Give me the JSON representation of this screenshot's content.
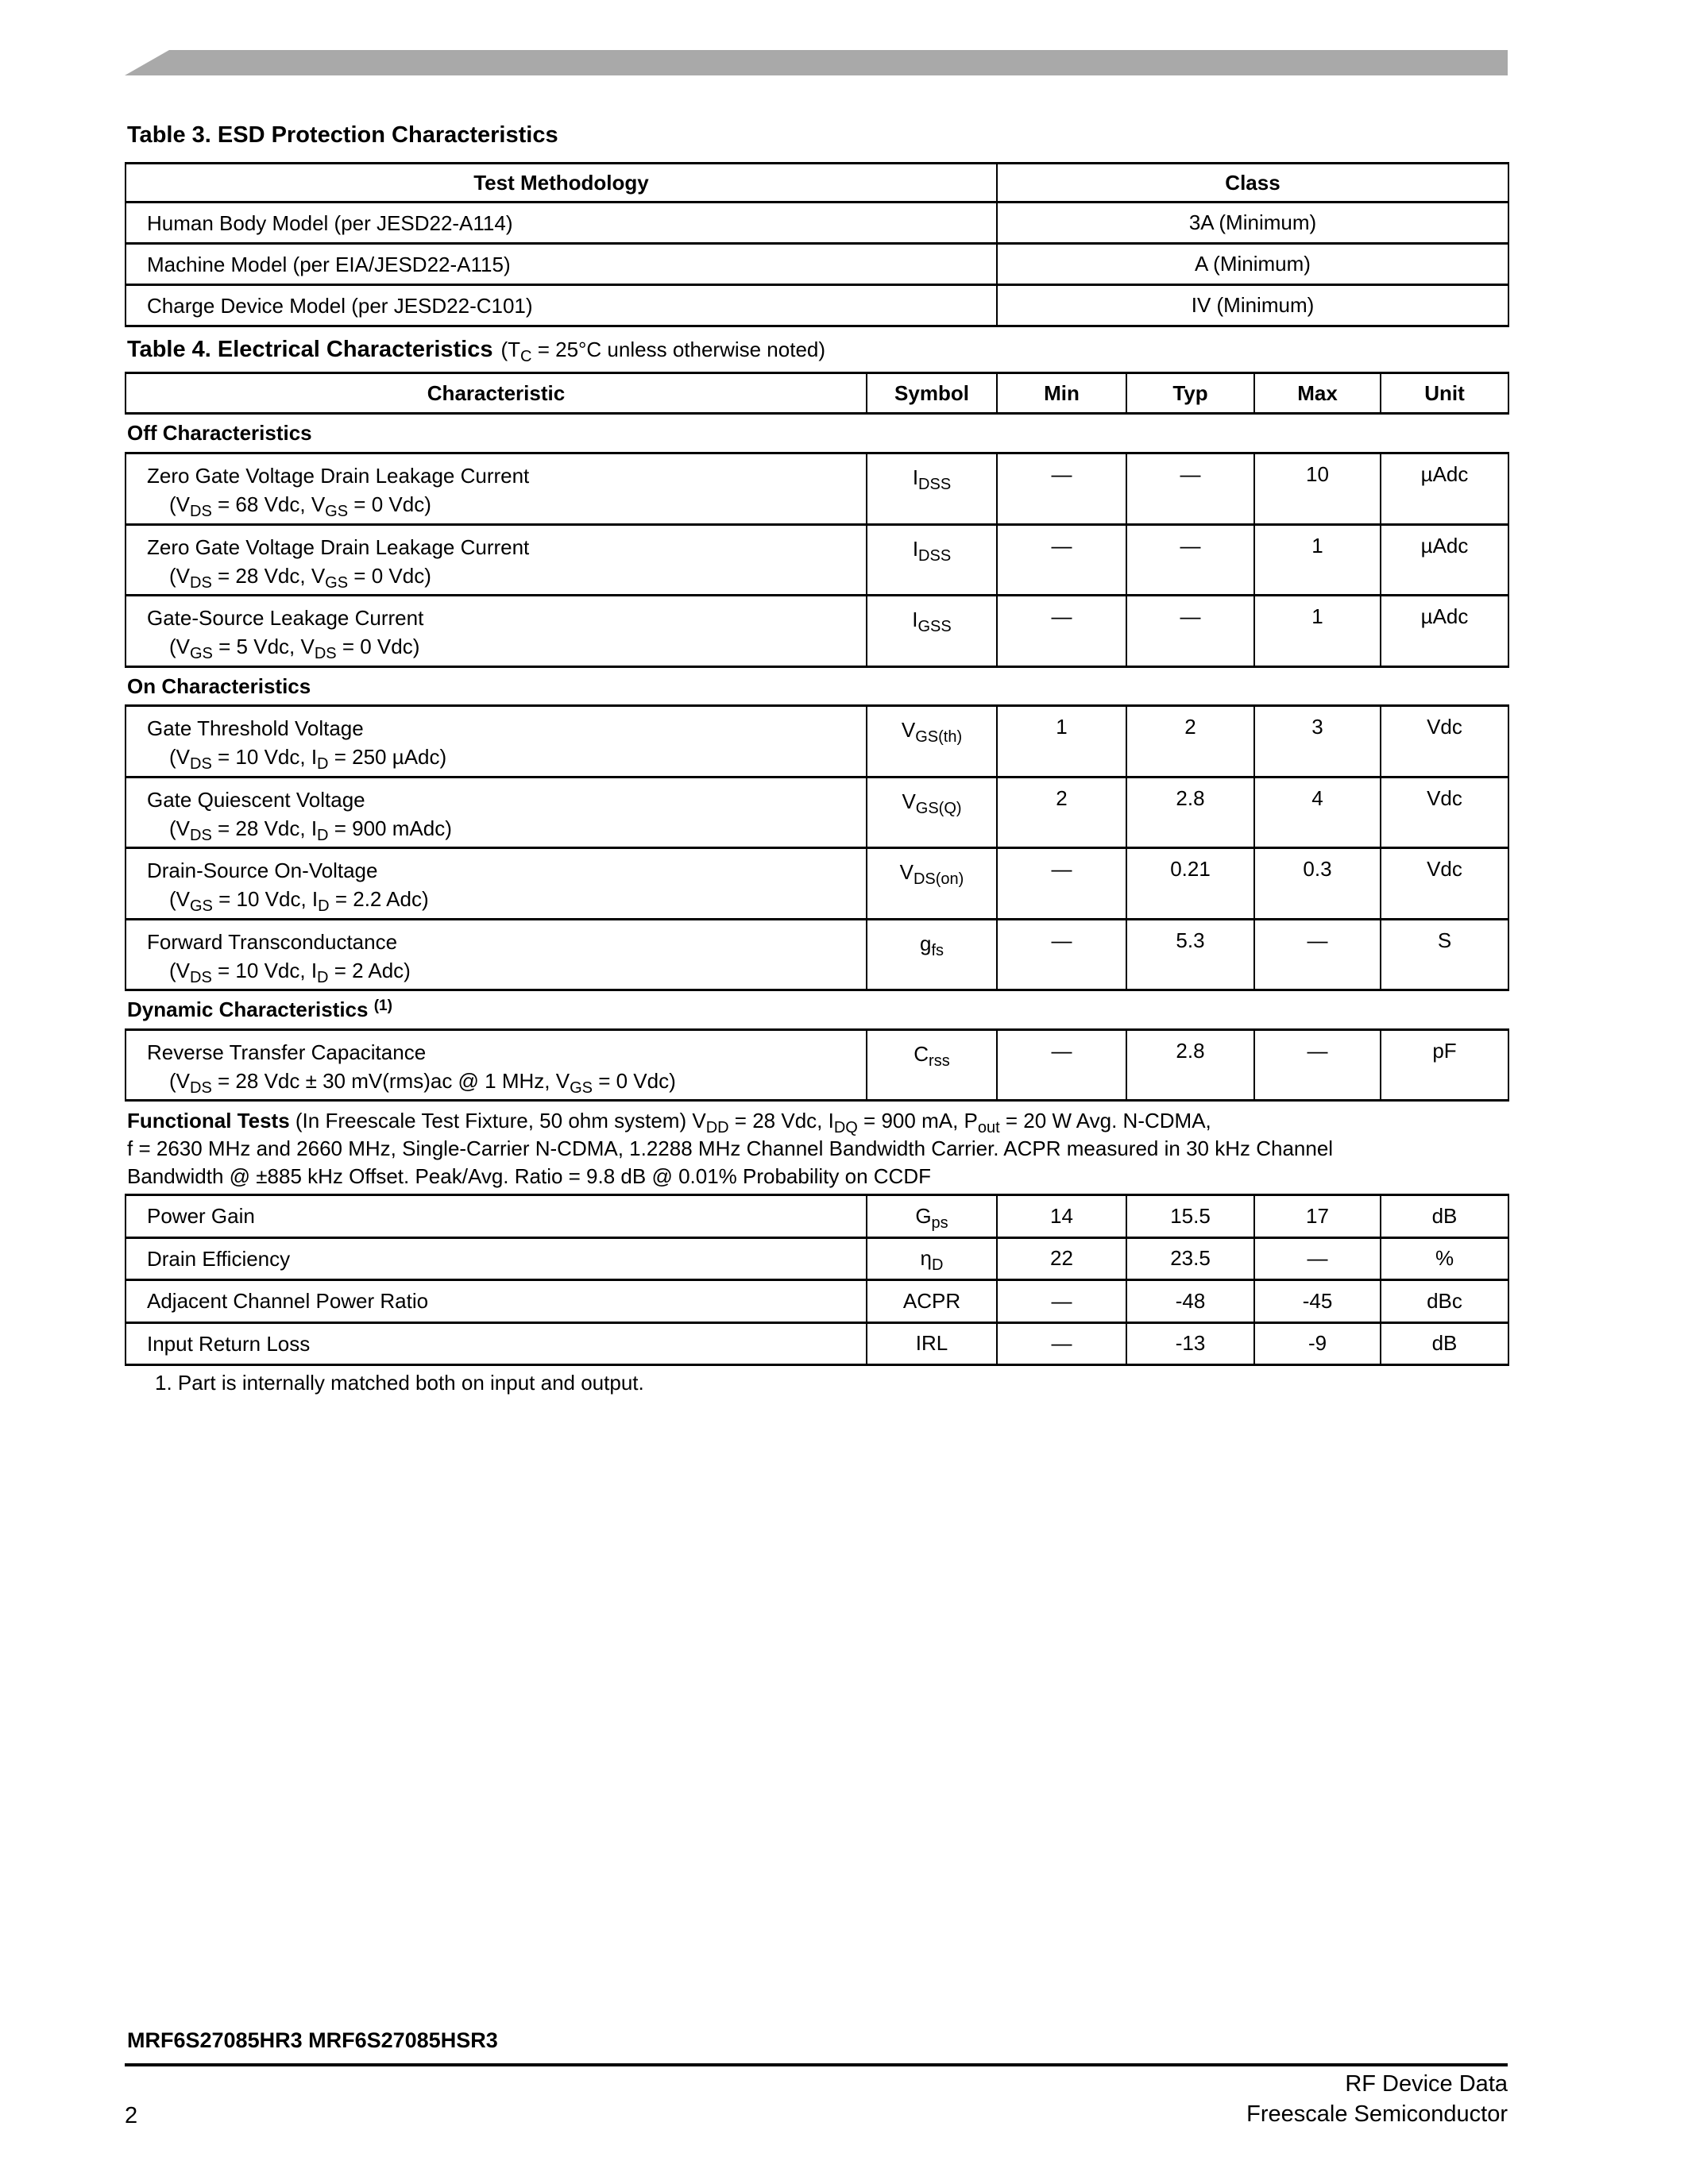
{
  "table3": {
    "title": "Table 3. ESD Protection Characteristics",
    "headers": [
      "Test Methodology",
      "Class"
    ],
    "rows": [
      [
        "Human Body Model (per JESD22-A114)",
        "3A (Minimum)"
      ],
      [
        "Machine Model (per EIA/JESD22-A115)",
        "A (Minimum)"
      ],
      [
        "Charge Device Model (per JESD22-C101)",
        "IV (Minimum)"
      ]
    ]
  },
  "table4": {
    "title": "Table 4. Electrical Characteristics",
    "note": [
      "(T",
      {
        "sub": "C"
      },
      " = 25°C unless otherwise noted)"
    ],
    "headers": [
      "Characteristic",
      "Symbol",
      "Min",
      "Typ",
      "Max",
      "Unit"
    ],
    "sections": [
      {
        "label": "Off Characteristics",
        "rows": [
          {
            "name": "Zero Gate Voltage Drain Leakage Current",
            "cond": [
              "(V",
              {
                "sub": "DS"
              },
              " = 68 Vdc, V",
              {
                "sub": "GS"
              },
              " = 0 Vdc)"
            ],
            "sym": [
              "I",
              {
                "sub": "DSS"
              }
            ],
            "min": "—",
            "typ": "—",
            "max": "10",
            "unit": "µAdc"
          },
          {
            "name": "Zero Gate Voltage Drain Leakage Current",
            "cond": [
              "(V",
              {
                "sub": "DS"
              },
              " = 28 Vdc, V",
              {
                "sub": "GS"
              },
              " = 0 Vdc)"
            ],
            "sym": [
              "I",
              {
                "sub": "DSS"
              }
            ],
            "min": "—",
            "typ": "—",
            "max": "1",
            "unit": "µAdc"
          },
          {
            "name": "Gate-Source Leakage Current",
            "cond": [
              "(V",
              {
                "sub": "GS"
              },
              " = 5 Vdc, V",
              {
                "sub": "DS"
              },
              " = 0 Vdc)"
            ],
            "sym": [
              "I",
              {
                "sub": "GSS"
              }
            ],
            "min": "—",
            "typ": "—",
            "max": "1",
            "unit": "µAdc"
          }
        ]
      },
      {
        "label": "On Characteristics",
        "rows": [
          {
            "name": "Gate Threshold Voltage",
            "cond": [
              "(V",
              {
                "sub": "DS"
              },
              " = 10 Vdc, I",
              {
                "sub": "D"
              },
              " = 250 µAdc)"
            ],
            "sym": [
              "V",
              {
                "sub": "GS(th)"
              }
            ],
            "min": "1",
            "typ": "2",
            "max": "3",
            "unit": "Vdc"
          },
          {
            "name": "Gate Quiescent Voltage",
            "cond": [
              "(V",
              {
                "sub": "DS"
              },
              " = 28 Vdc, I",
              {
                "sub": "D"
              },
              " = 900 mAdc)"
            ],
            "sym": [
              "V",
              {
                "sub": "GS(Q)"
              }
            ],
            "min": "2",
            "typ": "2.8",
            "max": "4",
            "unit": "Vdc"
          },
          {
            "name": "Drain-Source On-Voltage",
            "cond": [
              "(V",
              {
                "sub": "GS"
              },
              " = 10 Vdc, I",
              {
                "sub": "D"
              },
              " = 2.2 Adc)"
            ],
            "sym": [
              "V",
              {
                "sub": "DS(on)"
              }
            ],
            "min": "—",
            "typ": "0.21",
            "max": "0.3",
            "unit": "Vdc"
          },
          {
            "name": "Forward Transconductance",
            "cond": [
              "(V",
              {
                "sub": "DS"
              },
              " = 10 Vdc, I",
              {
                "sub": "D"
              },
              " = 2 Adc)"
            ],
            "sym": [
              "g",
              {
                "sub": "fs"
              }
            ],
            "min": "—",
            "typ": "5.3",
            "max": "—",
            "unit": "S"
          }
        ]
      },
      {
        "label": "Dynamic Characteristics",
        "label_sup": "(1)",
        "rows": [
          {
            "name": "Reverse Transfer Capacitance",
            "cond": [
              "(V",
              {
                "sub": "DS"
              },
              " = 28 Vdc ± 30 mV(rms)ac @ 1 MHz, V",
              {
                "sub": "GS"
              },
              " = 0 Vdc)"
            ],
            "sym": [
              "C",
              {
                "sub": "rss"
              }
            ],
            "min": "—",
            "typ": "2.8",
            "max": "—",
            "unit": "pF"
          }
        ]
      }
    ],
    "functional": {
      "label": "Functional Tests",
      "text": [
        " (In Freescale Test Fixture, 50 ohm system) V",
        {
          "sub": "DD"
        },
        " = 28 Vdc, I",
        {
          "sub": "DQ"
        },
        " = 900 mA, P",
        {
          "sub": "out"
        },
        " = 20 W Avg. N-CDMA,"
      ],
      "line2": "f = 2630 MHz and 2660 MHz, Single-Carrier N-CDMA, 1.2288 MHz Channel Bandwidth Carrier. ACPR measured in 30 kHz Channel",
      "line3": "Bandwidth @ ±885 kHz Offset. Peak/Avg. Ratio = 9.8 dB @ 0.01% Probability on CCDF",
      "rows": [
        {
          "name": "Power Gain",
          "sym": [
            "G",
            {
              "sub": "ps"
            }
          ],
          "min": "14",
          "typ": "15.5",
          "max": "17",
          "unit": "dB"
        },
        {
          "name": "Drain Efficiency",
          "sym": [
            "η",
            {
              "sub": "D"
            }
          ],
          "min": "22",
          "typ": "23.5",
          "max": "—",
          "unit": "%"
        },
        {
          "name": "Adjacent Channel Power Ratio",
          "sym": [
            "ACPR"
          ],
          "min": "—",
          "typ": "-48",
          "max": "-45",
          "unit": "dBc"
        },
        {
          "name": "Input Return Loss",
          "sym": [
            "IRL"
          ],
          "min": "—",
          "typ": "-13",
          "max": "-9",
          "unit": "dB"
        }
      ]
    },
    "footnote": "1.  Part is internally matched both on input and output."
  },
  "footer": {
    "part_numbers": "MRF6S27085HR3 MRF6S27085HSR3",
    "section": "RF Device Data",
    "company": "Freescale Semiconductor",
    "page": "2"
  }
}
